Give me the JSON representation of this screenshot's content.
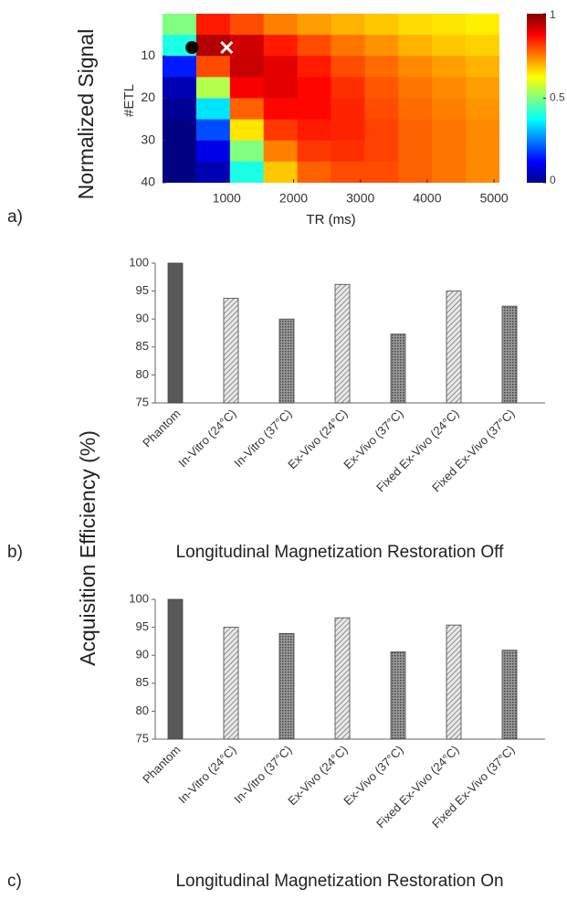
{
  "chart_data": [
    {
      "type": "heatmap",
      "panel_label": "a)",
      "ylabel_outer": "Normalized Signal",
      "xlabel": "TR (ms)",
      "ylabel": "#ETL",
      "x": [
        292,
        796,
        1300,
        1804,
        2308,
        2812,
        3316,
        3820,
        4324,
        4828
      ],
      "y": [
        2.5,
        7.5,
        12.5,
        17.5,
        22.5,
        27.5,
        32.5,
        37.5
      ],
      "z": [
        [
          0.5,
          0.85,
          0.8,
          0.75,
          0.72,
          0.7,
          0.68,
          0.66,
          0.65,
          0.64
        ],
        [
          0.4,
          0.95,
          0.92,
          0.85,
          0.8,
          0.76,
          0.73,
          0.7,
          0.68,
          0.67
        ],
        [
          0.15,
          0.8,
          0.93,
          0.9,
          0.85,
          0.8,
          0.77,
          0.74,
          0.72,
          0.7
        ],
        [
          0.05,
          0.55,
          0.88,
          0.9,
          0.87,
          0.83,
          0.79,
          0.76,
          0.74,
          0.72
        ],
        [
          0.02,
          0.35,
          0.78,
          0.87,
          0.87,
          0.84,
          0.8,
          0.77,
          0.75,
          0.73
        ],
        [
          0,
          0.2,
          0.65,
          0.82,
          0.85,
          0.84,
          0.81,
          0.78,
          0.76,
          0.74
        ],
        [
          0,
          0.1,
          0.5,
          0.75,
          0.82,
          0.83,
          0.81,
          0.78,
          0.76,
          0.74
        ],
        [
          0,
          0.05,
          0.4,
          0.68,
          0.78,
          0.8,
          0.8,
          0.78,
          0.76,
          0.74
        ]
      ],
      "xlim": [
        40,
        5080
      ],
      "xticks": [
        1000,
        2000,
        3000,
        4000,
        5000
      ],
      "ylim": [
        40,
        0
      ],
      "yticks": [
        10,
        20,
        30,
        40
      ],
      "zlim": [
        0,
        1
      ],
      "zticks": [
        0,
        0.5,
        1
      ],
      "colormap": "jet",
      "points": [
        {
          "x": 480,
          "y": 8,
          "color": "#000000",
          "marker": "circle"
        },
        {
          "x": 1000,
          "y": 8,
          "color": "#ffffff",
          "marker": "x"
        }
      ]
    },
    {
      "type": "bar",
      "panel_label": "b)",
      "subtitle": "Longitudinal Magnetization Restoration Off",
      "ylabel": "Acquisition Efficiency (%)",
      "categories": [
        "Phantom",
        "In-Vitro (24°C)",
        "In-Vitro (37°C)",
        "Ex-Vivo (24°C)",
        "Ex-Vivo (37°C)",
        "Fixed Ex-Vivo (24°C)",
        "Fixed Ex-Vivo (37°C)"
      ],
      "values": [
        100,
        93.7,
        90,
        96.2,
        87.3,
        95,
        92.3
      ],
      "bar_styles": [
        "solid",
        "hatch",
        "cross",
        "hatch",
        "cross",
        "hatch",
        "cross"
      ],
      "color": "#595959",
      "ylim": [
        75,
        100
      ],
      "yticks": [
        75,
        80,
        85,
        90,
        95,
        100
      ]
    },
    {
      "type": "bar",
      "panel_label": "c)",
      "subtitle": "Longitudinal Magnetization Restoration On",
      "categories": [
        "Phantom",
        "In-Vitro (24°C)",
        "In-Vitro (37°C)",
        "Ex-Vivo (24°C)",
        "Ex-Vivo (37°C)",
        "Fixed Ex-Vivo (24°C)",
        "Fixed Ex-Vivo (37°C)"
      ],
      "values": [
        100,
        95,
        93.9,
        96.7,
        90.6,
        95.4,
        90.9
      ],
      "bar_styles": [
        "solid",
        "hatch",
        "cross",
        "hatch",
        "cross",
        "hatch",
        "cross"
      ],
      "color": "#595959",
      "ylim": [
        75,
        100
      ],
      "yticks": [
        75,
        80,
        85,
        90,
        95,
        100
      ]
    }
  ]
}
